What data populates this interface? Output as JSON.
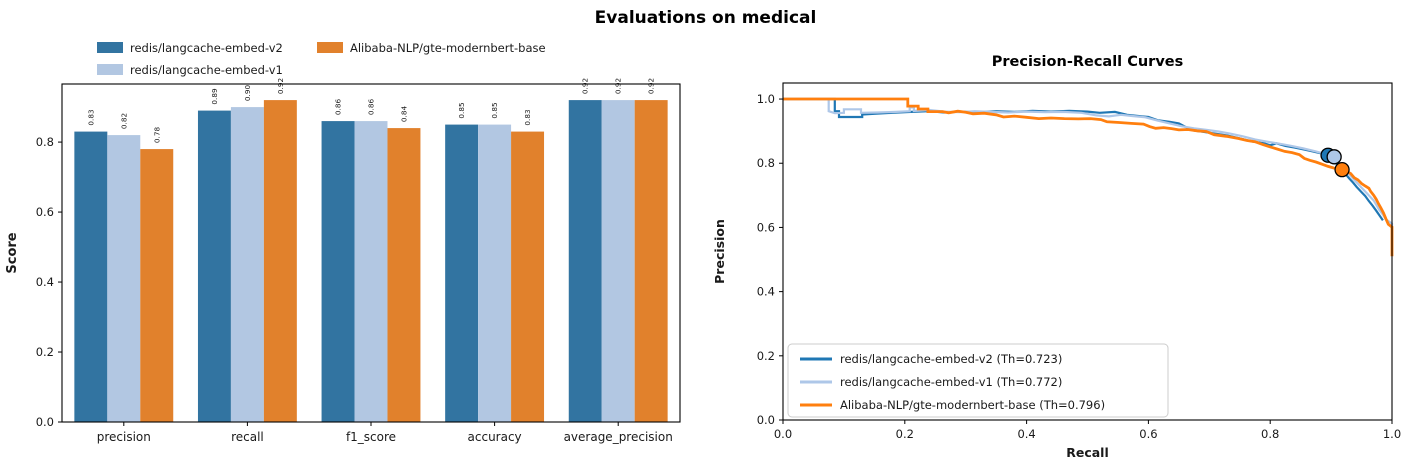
{
  "figure": {
    "title": "Evaluations on medical",
    "background": "#ffffff"
  },
  "colors": {
    "bar_blue_dark": "#3274A1",
    "bar_blue_light": "#B2C7E2",
    "bar_orange": "#E1812C",
    "line_blue_dark": "#1F77B4",
    "line_blue_light": "#AEC7E8",
    "line_orange": "#FF7F0E",
    "axis": "#000000",
    "text": "#1a1a1a",
    "legend_border": "#cccccc"
  },
  "chart_data": [
    {
      "type": "bar",
      "title": "",
      "ylabel": "Score",
      "xlabel": "",
      "categories": [
        "precision",
        "recall",
        "f1_score",
        "accuracy",
        "average_precision"
      ],
      "series": [
        {
          "name": "redis/langcache-embed-v2",
          "color": "#3274A1",
          "values": [
            0.83,
            0.89,
            0.86,
            0.85,
            0.92
          ]
        },
        {
          "name": "redis/langcache-embed-v1",
          "color": "#B2C7E2",
          "values": [
            0.82,
            0.9,
            0.86,
            0.85,
            0.92
          ]
        },
        {
          "name": "Alibaba-NLP/gte-modernbert-base",
          "color": "#E1812C",
          "values": [
            0.78,
            0.92,
            0.84,
            0.83,
            0.92
          ]
        }
      ],
      "yticks": [
        0.0,
        0.2,
        0.4,
        0.6,
        0.8
      ],
      "ylim": [
        0,
        0.966
      ],
      "bar_labels_rotated": true,
      "grid": false,
      "legend_position": "above-plot upper-left, 2 columns, no frame"
    },
    {
      "type": "line",
      "title": "Precision-Recall Curves",
      "xlabel": "Recall",
      "ylabel": "Precision",
      "xlim": [
        0.0,
        1.0
      ],
      "ylim": [
        0.0,
        1.05
      ],
      "xticks": [
        0.0,
        0.2,
        0.4,
        0.6,
        0.8,
        1.0
      ],
      "yticks": [
        0.0,
        0.2,
        0.4,
        0.6,
        0.8,
        1.0
      ],
      "grid": false,
      "legend_position": "lower left, framed",
      "series": [
        {
          "name": "redis/langcache-embed-v2 (Th=0.723)",
          "color": "#1F77B4",
          "line_width": 2.2,
          "threshold_marker": {
            "recall": 0.895,
            "precision": 0.825
          },
          "points": [
            [
              0,
              1
            ],
            [
              0.085,
              1
            ],
            [
              0.085,
              0.962
            ],
            [
              0.092,
              0.962
            ],
            [
              0.092,
              0.944
            ],
            [
              0.13,
              0.944
            ],
            [
              0.13,
              0.952
            ],
            [
              0.15,
              0.954
            ],
            [
              0.18,
              0.957
            ],
            [
              0.21,
              0.96
            ],
            [
              0.24,
              0.962
            ],
            [
              0.265,
              0.958
            ],
            [
              0.29,
              0.961
            ],
            [
              0.32,
              0.959
            ],
            [
              0.35,
              0.962
            ],
            [
              0.38,
              0.96
            ],
            [
              0.41,
              0.963
            ],
            [
              0.44,
              0.961
            ],
            [
              0.47,
              0.963
            ],
            [
              0.5,
              0.961
            ],
            [
              0.52,
              0.957
            ],
            [
              0.545,
              0.96
            ],
            [
              0.565,
              0.951
            ],
            [
              0.585,
              0.947
            ],
            [
              0.6,
              0.944
            ],
            [
              0.615,
              0.934
            ],
            [
              0.635,
              0.929
            ],
            [
              0.65,
              0.924
            ],
            [
              0.66,
              0.914
            ],
            [
              0.675,
              0.902
            ],
            [
              0.69,
              0.898
            ],
            [
              0.71,
              0.892
            ],
            [
              0.73,
              0.886
            ],
            [
              0.75,
              0.877
            ],
            [
              0.77,
              0.868
            ],
            [
              0.79,
              0.862
            ],
            [
              0.8,
              0.856
            ],
            [
              0.81,
              0.862
            ],
            [
              0.825,
              0.854
            ],
            [
              0.84,
              0.849
            ],
            [
              0.855,
              0.843
            ],
            [
              0.87,
              0.837
            ],
            [
              0.885,
              0.83
            ],
            [
              0.895,
              0.825
            ],
            [
              0.9,
              0.812
            ],
            [
              0.908,
              0.8
            ],
            [
              0.915,
              0.786
            ],
            [
              0.922,
              0.77
            ],
            [
              0.93,
              0.752
            ],
            [
              0.936,
              0.74
            ],
            [
              0.942,
              0.726
            ],
            [
              0.95,
              0.71
            ],
            [
              0.956,
              0.698
            ],
            [
              0.962,
              0.682
            ],
            [
              0.968,
              0.668
            ],
            [
              0.974,
              0.652
            ],
            [
              0.98,
              0.636
            ],
            [
              0.985,
              0.622
            ]
          ]
        },
        {
          "name": "redis/langcache-embed-v1 (Th=0.772)",
          "color": "#AEC7E8",
          "line_width": 2.2,
          "threshold_marker": {
            "recall": 0.905,
            "precision": 0.82
          },
          "points": [
            [
              0,
              1
            ],
            [
              0.075,
              1
            ],
            [
              0.075,
              0.962
            ],
            [
              0.085,
              0.956
            ],
            [
              0.1,
              0.957
            ],
            [
              0.1,
              0.968
            ],
            [
              0.128,
              0.968
            ],
            [
              0.128,
              0.957
            ],
            [
              0.155,
              0.958
            ],
            [
              0.185,
              0.96
            ],
            [
              0.208,
              0.962
            ],
            [
              0.208,
              0.974
            ],
            [
              0.215,
              0.974
            ],
            [
              0.215,
              0.963
            ],
            [
              0.24,
              0.966
            ],
            [
              0.265,
              0.961
            ],
            [
              0.29,
              0.959
            ],
            [
              0.315,
              0.962
            ],
            [
              0.34,
              0.96
            ],
            [
              0.37,
              0.958
            ],
            [
              0.4,
              0.961
            ],
            [
              0.43,
              0.959
            ],
            [
              0.46,
              0.96
            ],
            [
              0.49,
              0.957
            ],
            [
              0.515,
              0.949
            ],
            [
              0.535,
              0.946
            ],
            [
              0.555,
              0.951
            ],
            [
              0.575,
              0.947
            ],
            [
              0.595,
              0.943
            ],
            [
              0.615,
              0.933
            ],
            [
              0.635,
              0.924
            ],
            [
              0.655,
              0.915
            ],
            [
              0.675,
              0.909
            ],
            [
              0.695,
              0.904
            ],
            [
              0.715,
              0.899
            ],
            [
              0.735,
              0.892
            ],
            [
              0.755,
              0.884
            ],
            [
              0.775,
              0.874
            ],
            [
              0.795,
              0.867
            ],
            [
              0.815,
              0.861
            ],
            [
              0.835,
              0.854
            ],
            [
              0.855,
              0.846
            ],
            [
              0.875,
              0.837
            ],
            [
              0.89,
              0.829
            ],
            [
              0.905,
              0.82
            ],
            [
              0.913,
              0.801
            ],
            [
              0.92,
              0.79
            ],
            [
              0.93,
              0.764
            ],
            [
              0.94,
              0.744
            ],
            [
              0.95,
              0.724
            ],
            [
              0.96,
              0.704
            ],
            [
              0.97,
              0.684
            ],
            [
              0.979,
              0.655
            ],
            [
              0.985,
              0.64
            ],
            [
              0.99,
              0.625
            ],
            [
              1,
              0.612
            ],
            [
              1,
              0.6
            ]
          ]
        },
        {
          "name": "Alibaba-NLP/gte-modernbert-base (Th=0.796)",
          "color": "#FF7F0E",
          "line_width": 2.8,
          "threshold_marker": {
            "recall": 0.918,
            "precision": 0.78
          },
          "points": [
            [
              0,
              1
            ],
            [
              0.205,
              1
            ],
            [
              0.205,
              0.978
            ],
            [
              0.222,
              0.978
            ],
            [
              0.222,
              0.969
            ],
            [
              0.238,
              0.969
            ],
            [
              0.238,
              0.961
            ],
            [
              0.262,
              0.961
            ],
            [
              0.272,
              0.957
            ],
            [
              0.287,
              0.962
            ],
            [
              0.3,
              0.959
            ],
            [
              0.312,
              0.954
            ],
            [
              0.33,
              0.956
            ],
            [
              0.35,
              0.951
            ],
            [
              0.362,
              0.944
            ],
            [
              0.38,
              0.947
            ],
            [
              0.4,
              0.943
            ],
            [
              0.42,
              0.939
            ],
            [
              0.44,
              0.941
            ],
            [
              0.462,
              0.939
            ],
            [
              0.485,
              0.938
            ],
            [
              0.505,
              0.939
            ],
            [
              0.522,
              0.936
            ],
            [
              0.532,
              0.929
            ],
            [
              0.552,
              0.927
            ],
            [
              0.572,
              0.924
            ],
            [
              0.592,
              0.922
            ],
            [
              0.602,
              0.914
            ],
            [
              0.612,
              0.909
            ],
            [
              0.625,
              0.911
            ],
            [
              0.638,
              0.908
            ],
            [
              0.65,
              0.904
            ],
            [
              0.665,
              0.905
            ],
            [
              0.68,
              0.901
            ],
            [
              0.695,
              0.899
            ],
            [
              0.708,
              0.889
            ],
            [
              0.728,
              0.884
            ],
            [
              0.748,
              0.877
            ],
            [
              0.762,
              0.871
            ],
            [
              0.775,
              0.867
            ],
            [
              0.788,
              0.858
            ],
            [
              0.8,
              0.851
            ],
            [
              0.812,
              0.844
            ],
            [
              0.824,
              0.837
            ],
            [
              0.836,
              0.833
            ],
            [
              0.848,
              0.827
            ],
            [
              0.856,
              0.815
            ],
            [
              0.865,
              0.809
            ],
            [
              0.875,
              0.804
            ],
            [
              0.885,
              0.797
            ],
            [
              0.895,
              0.79
            ],
            [
              0.905,
              0.785
            ],
            [
              0.918,
              0.78
            ],
            [
              0.926,
              0.774
            ],
            [
              0.932,
              0.768
            ],
            [
              0.938,
              0.755
            ],
            [
              0.944,
              0.748
            ],
            [
              0.95,
              0.737
            ],
            [
              0.956,
              0.729
            ],
            [
              0.962,
              0.722
            ],
            [
              0.965,
              0.712
            ],
            [
              0.97,
              0.7
            ],
            [
              0.974,
              0.688
            ],
            [
              0.978,
              0.673
            ],
            [
              0.982,
              0.66
            ],
            [
              0.986,
              0.645
            ],
            [
              0.99,
              0.627
            ],
            [
              0.994,
              0.61
            ],
            [
              1,
              0.601
            ],
            [
              1,
              0.51
            ]
          ]
        }
      ]
    }
  ]
}
